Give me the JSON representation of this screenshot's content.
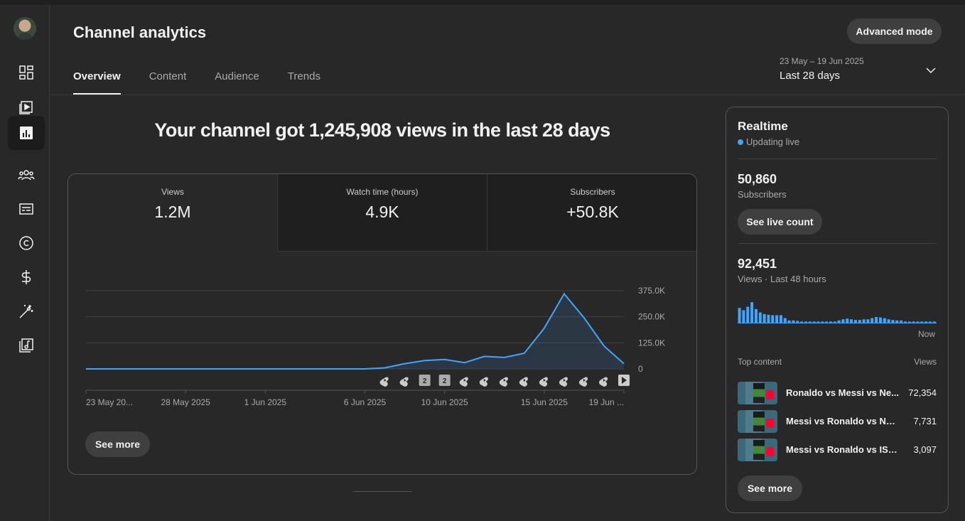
{
  "header": {
    "title": "Channel analytics",
    "advanced_mode": "Advanced mode",
    "tabs": [
      {
        "label": "Overview"
      },
      {
        "label": "Content"
      },
      {
        "label": "Audience"
      },
      {
        "label": "Trends"
      }
    ],
    "date_range": "23 May – 19 Jun 2025",
    "period": "Last 28 days"
  },
  "sidebar": {
    "items": [
      {
        "icon": "dashboard-icon"
      },
      {
        "icon": "content-icon"
      },
      {
        "icon": "analytics-icon",
        "active": true
      },
      {
        "icon": "community-icon"
      },
      {
        "icon": "subtitles-icon"
      },
      {
        "icon": "copyright-icon"
      },
      {
        "icon": "earn-icon"
      },
      {
        "icon": "customization-icon"
      },
      {
        "icon": "audio-library-icon"
      }
    ]
  },
  "main": {
    "headline": "Your channel got 1,245,908 views in the last 28 days",
    "metrics": [
      {
        "label": "Views",
        "value": "1.2M"
      },
      {
        "label": "Watch time (hours)",
        "value": "4.9K"
      },
      {
        "label": "Subscribers",
        "value": "+50.8K"
      }
    ],
    "see_more": "See more"
  },
  "chart_data": {
    "type": "line",
    "series": [
      {
        "values": [
          0,
          0,
          0,
          0,
          0,
          0,
          0,
          0,
          0,
          0,
          0,
          0,
          0,
          0,
          0,
          5000,
          25000,
          40000,
          45000,
          30000,
          60000,
          55000,
          75000,
          195000,
          360000,
          245000,
          110000,
          25000
        ]
      }
    ],
    "x_labels": [
      "23 May 20...",
      "28 May 2025",
      "1 Jun 2025",
      "6 Jun 2025",
      "10 Jun 2025",
      "15 Jun 2025",
      "19 Jun ..."
    ],
    "y_ticks": [
      "375.0K",
      "250.0K",
      "125.0K",
      "0"
    ],
    "ylim": [
      0,
      375000
    ],
    "markers": [
      "shorts",
      "shorts",
      "2",
      "2",
      "shorts",
      "shorts",
      "shorts",
      "shorts",
      "shorts",
      "shorts",
      "shorts",
      "shorts",
      "play"
    ],
    "line_color": "#3ea6ff"
  },
  "realtime": {
    "title": "Realtime",
    "status": "Updating live",
    "subscribers_value": "50,860",
    "subscribers_label": "Subscribers",
    "see_live_count": "See live count",
    "views_value": "92,451",
    "views_label": "Views · Last 48 hours",
    "bars": [
      0.65,
      0.55,
      0.7,
      0.9,
      0.6,
      0.45,
      0.38,
      0.35,
      0.33,
      0.33,
      0.33,
      0.2,
      0.1,
      0.1,
      0.08,
      0.05,
      0.05,
      0.05,
      0.05,
      0.05,
      0.05,
      0.05,
      0.05,
      0.05,
      0.1,
      0.15,
      0.18,
      0.15,
      0.12,
      0.12,
      0.15,
      0.15,
      0.2,
      0.25,
      0.23,
      0.2,
      0.15,
      0.12,
      0.1,
      0.1,
      0.05,
      0.05,
      0.05,
      0.05,
      0.05,
      0.05,
      0.05,
      0.05
    ],
    "now_label": "Now",
    "top_content_label": "Top content",
    "views_col_label": "Views",
    "top_content": [
      {
        "title": "Ronaldo vs Messi vs Ne...",
        "views": "72,354"
      },
      {
        "title": "Messi vs Ronaldo vs Ney...",
        "views": "7,731"
      },
      {
        "title": "Messi vs Ronaldo vs ISho...",
        "views": "3,097"
      }
    ],
    "see_more": "See more"
  }
}
